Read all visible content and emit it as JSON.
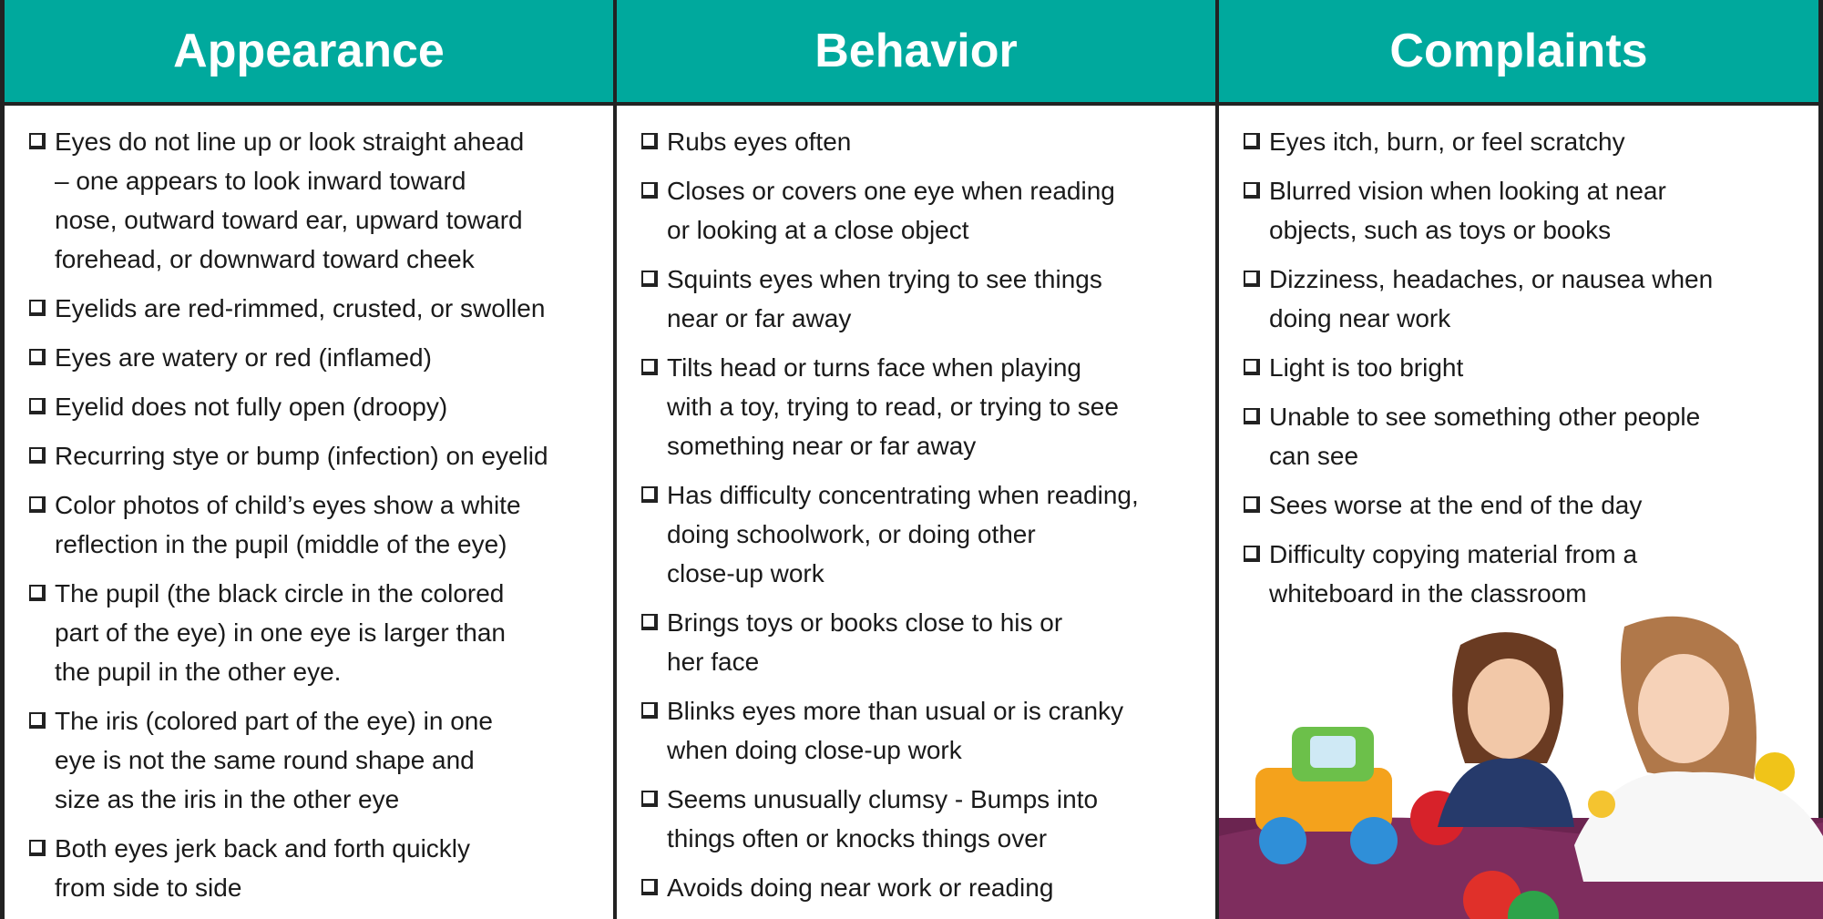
{
  "columns": [
    {
      "title": "Appearance",
      "items": [
        [
          "Eyes do not line up or look straight ahead",
          "– one appears to look inward toward",
          "nose, outward toward ear, upward toward",
          "forehead, or downward toward cheek"
        ],
        [
          "Eyelids are red-rimmed, crusted, or swollen"
        ],
        [
          "Eyes are watery or red (inflamed)"
        ],
        [
          "Eyelid does not fully open (droopy)"
        ],
        [
          "Recurring stye or bump (infection) on eyelid"
        ],
        [
          "Color photos of child’s eyes show a white",
          "reflection in the pupil (middle of the eye)"
        ],
        [
          "The pupil (the black circle in the colored",
          "part of the eye) in one eye is larger than",
          "the pupil in the other eye."
        ],
        [
          "The iris (colored part of the eye) in one",
          "eye is not the same round shape and",
          "size as the iris in the other eye"
        ],
        [
          "Both eyes jerk back and forth quickly",
          "from side to side"
        ]
      ]
    },
    {
      "title": "Behavior",
      "items": [
        [
          "Rubs eyes often"
        ],
        [
          "Closes or covers one eye when reading",
          "or looking at a close object"
        ],
        [
          "Squints eyes when trying to see things",
          "near or far away"
        ],
        [
          "Tilts head or turns face when playing",
          "with a toy, trying to read, or trying to see",
          "something near or far away"
        ],
        [
          "Has difficulty concentrating when reading,",
          "doing schoolwork, or doing other",
          "close-up work"
        ],
        [
          "Brings toys or books close to his or",
          "her face"
        ],
        [
          "Blinks eyes more than usual or is cranky",
          "when doing close-up work"
        ],
        [
          "Seems unusually clumsy - Bumps into",
          "things often or knocks things over"
        ],
        [
          "Avoids doing near work or reading"
        ]
      ]
    },
    {
      "title": "Complaints",
      "items": [
        [
          "Eyes itch, burn, or feel scratchy"
        ],
        [
          "Blurred vision when looking at near",
          "objects, such as toys or books"
        ],
        [
          "Dizziness, headaches, or nausea when",
          "doing near work"
        ],
        [
          "Light is too bright"
        ],
        [
          "Unable to see something other people",
          "can see"
        ],
        [
          "Sees worse at the end of the day"
        ],
        [
          "Difficulty copying material from a",
          "whiteboard in the classroom"
        ]
      ]
    }
  ]
}
